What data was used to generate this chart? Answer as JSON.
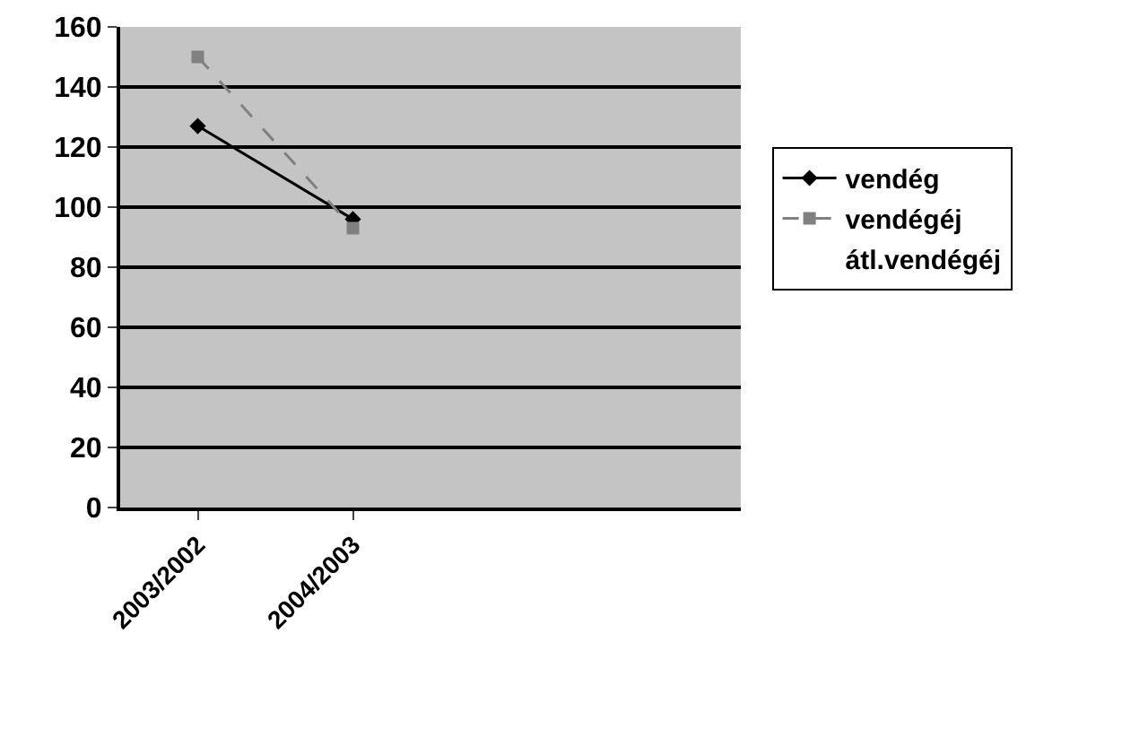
{
  "chart_data": {
    "type": "line",
    "categories": [
      "2003/2002",
      "2004/2003",
      null,
      null
    ],
    "series": [
      {
        "name": "vendég",
        "color": "#000000",
        "values": [
          127,
          96,
          null,
          null
        ],
        "marker": "diamond",
        "line_style": "solid"
      },
      {
        "name": "vendégéj",
        "color": "#808080",
        "values": [
          150,
          93,
          null,
          null
        ],
        "marker": "square",
        "line_style": "dashed"
      },
      {
        "name": "átl.vendégéj",
        "values": [
          null,
          null,
          null,
          null
        ]
      }
    ],
    "ylim": [
      0,
      160
    ],
    "yticks": [
      0,
      20,
      40,
      60,
      80,
      100,
      120,
      140,
      160
    ],
    "grid": "y",
    "legend": "right"
  }
}
